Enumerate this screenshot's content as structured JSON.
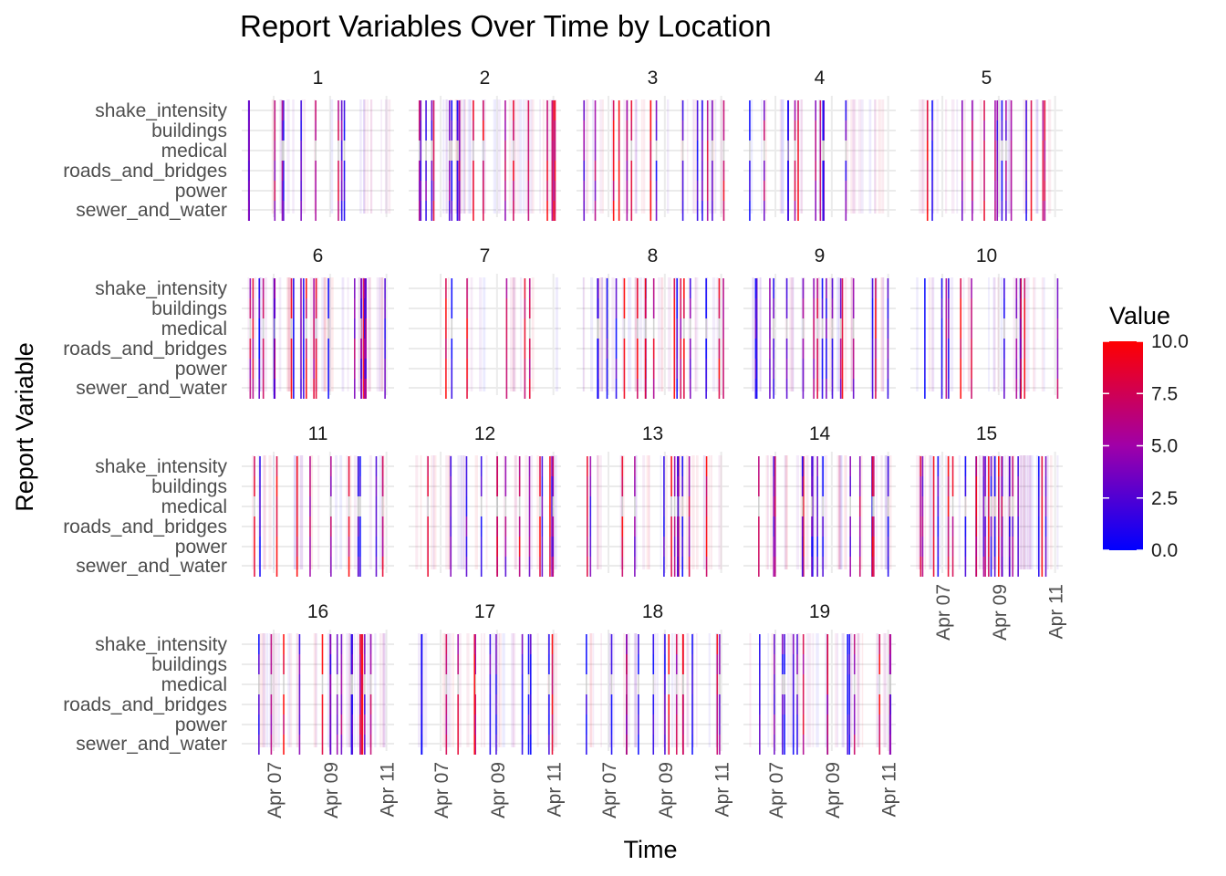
{
  "chart_data": {
    "type": "heatmap",
    "title": "Report Variables Over Time by Location",
    "xlabel": "Time",
    "ylabel": "Report Variable",
    "facet_labels": [
      "1",
      "2",
      "3",
      "4",
      "5",
      "6",
      "7",
      "8",
      "9",
      "10",
      "11",
      "12",
      "13",
      "14",
      "15",
      "16",
      "17",
      "18",
      "19"
    ],
    "y_categories": [
      "shake_intensity",
      "buildings",
      "medical",
      "roads_and_bridges",
      "power",
      "sewer_and_water"
    ],
    "x_ticks": [
      "Apr 07",
      "Apr 09",
      "Apr 11"
    ],
    "x_range": [
      "Apr 06",
      "Apr 11"
    ],
    "legend": {
      "title": "Value",
      "ticks": [
        "0.0",
        "2.5",
        "5.0",
        "7.5",
        "10.0"
      ],
      "range": [
        0,
        10
      ],
      "low_color": "#0000ff",
      "mid_color": "#a000a8",
      "high_color": "#ff0000",
      "position": "right"
    },
    "background_color": "#ffffff",
    "grid_color": "#ebebeb",
    "missing_color": "#bfbfbf",
    "grid": true
  }
}
